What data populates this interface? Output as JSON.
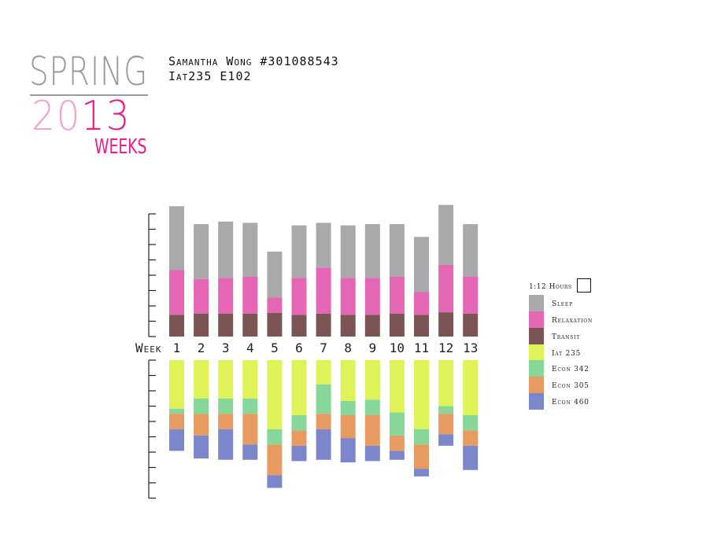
{
  "header": {
    "title_word": "SPRING",
    "year_part1": "20",
    "year_part2": "13",
    "subtitle": "WEEKS",
    "author_line": "Samantha Wong #301088543",
    "course_line": "Iat235 E102"
  },
  "colors": {
    "Sleep": "#a9a9ab",
    "Relaxation": "#e466b4",
    "Transit": "#7b5553",
    "Iat 235": "#dff358",
    "Econ 342": "#87d69a",
    "Econ 305": "#e89b60",
    "Econ 460": "#7b86cb"
  },
  "legend": {
    "scale_label": "1:12 Hours",
    "items": [
      "Sleep",
      "Relaxation",
      "Transit",
      "Iat 235",
      "Econ 342",
      "Econ 305",
      "Econ 460"
    ]
  },
  "chart_data": {
    "type": "bar",
    "title": "",
    "xlabel": "Week",
    "ylabel": "",
    "unit_note": "1 tick = 12 hours",
    "categories": [
      "1",
      "2",
      "3",
      "4",
      "5",
      "6",
      "7",
      "8",
      "9",
      "10",
      "11",
      "12",
      "13"
    ],
    "upper": {
      "ylim": [
        0,
        96
      ],
      "stack_order": [
        "Transit",
        "Relaxation",
        "Sleep"
      ],
      "series": [
        {
          "name": "Transit",
          "values": [
            17,
            18,
            18,
            18,
            18.5,
            17,
            18,
            17,
            17,
            18,
            17,
            19,
            18
          ]
        },
        {
          "name": "Relaxation",
          "values": [
            35,
            27,
            28,
            29,
            12,
            29,
            36,
            29,
            29,
            29,
            18,
            37,
            29
          ]
        },
        {
          "name": "Sleep",
          "values": [
            50,
            43,
            44,
            42,
            36,
            41,
            35,
            41,
            42,
            41,
            43,
            47,
            41
          ]
        }
      ]
    },
    "lower": {
      "ylim": [
        0,
        108
      ],
      "stack_order": [
        "Iat 235",
        "Econ 342",
        "Econ 305",
        "Econ 460"
      ],
      "series": [
        {
          "name": "Iat 235",
          "values": [
            38,
            30,
            30,
            30,
            54,
            43,
            19,
            32,
            31,
            41,
            54,
            36,
            43
          ]
        },
        {
          "name": "Econ 342",
          "values": [
            4,
            12,
            12,
            12,
            12,
            12,
            23,
            11,
            12,
            18,
            12,
            6,
            12
          ]
        },
        {
          "name": "Econ 305",
          "values": [
            12,
            17,
            12,
            24,
            24,
            12,
            12,
            18,
            24,
            12,
            19,
            16,
            12
          ]
        },
        {
          "name": "Econ 460",
          "values": [
            17,
            18,
            24,
            12,
            10,
            12,
            24,
            19,
            12,
            7,
            6,
            9,
            19
          ]
        }
      ]
    },
    "grid": false,
    "legend_position": "right"
  }
}
